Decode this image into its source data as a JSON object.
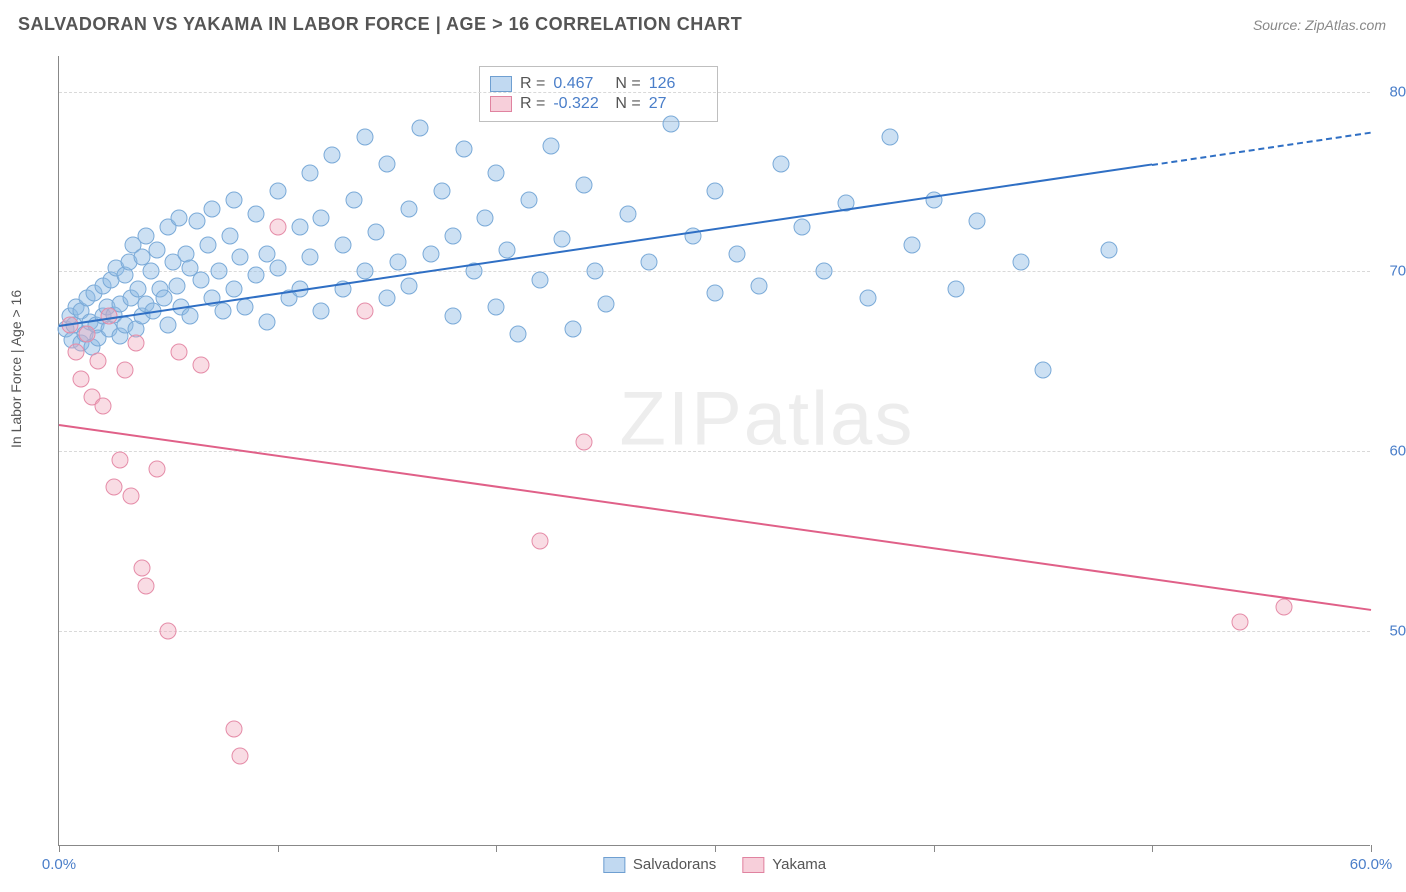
{
  "header": {
    "title": "SALVADORAN VS YAKAMA IN LABOR FORCE | AGE > 16 CORRELATION CHART",
    "source": "Source: ZipAtlas.com"
  },
  "watermark": {
    "zip": "ZIP",
    "atlas": "atlas"
  },
  "chart": {
    "type": "scatter",
    "background_color": "#ffffff",
    "grid_color": "#d9d9d9",
    "axis_color": "#888888",
    "label_color": "#555555",
    "tick_label_color": "#4a7ec9",
    "ylabel": "In Labor Force | Age > 16",
    "xlim": [
      0,
      60
    ],
    "ylim": [
      38,
      82
    ],
    "xtick_positions": [
      0,
      10,
      20,
      30,
      40,
      50,
      60
    ],
    "xtick_labels": {
      "0": "0.0%",
      "60": "60.0%"
    },
    "ytick_positions": [
      50,
      60,
      70,
      80
    ],
    "ytick_labels": {
      "50": "50.0%",
      "60": "60.0%",
      "70": "70.0%",
      "80": "80.0%"
    },
    "series": {
      "salvadorans": {
        "label": "Salvadorans",
        "color_fill": "rgba(142,186,229,0.45)",
        "color_stroke": "#7aaad8",
        "marker_size": 17,
        "r_value": "0.467",
        "n_value": "126",
        "trend": {
          "x1": 0,
          "y1": 67.0,
          "x2": 50,
          "y2": 76.0,
          "extrap_x2": 60,
          "extrap_y2": 77.8,
          "color": "#2f6fc4"
        },
        "points": [
          [
            0.3,
            66.8
          ],
          [
            0.5,
            67.5
          ],
          [
            0.6,
            66.2
          ],
          [
            0.7,
            67.0
          ],
          [
            0.8,
            68.0
          ],
          [
            1.0,
            66.0
          ],
          [
            1.0,
            67.8
          ],
          [
            1.2,
            66.5
          ],
          [
            1.3,
            68.5
          ],
          [
            1.4,
            67.2
          ],
          [
            1.5,
            65.8
          ],
          [
            1.6,
            68.8
          ],
          [
            1.7,
            67.0
          ],
          [
            1.8,
            66.3
          ],
          [
            2.0,
            69.2
          ],
          [
            2.0,
            67.5
          ],
          [
            2.2,
            68.0
          ],
          [
            2.3,
            66.8
          ],
          [
            2.4,
            69.5
          ],
          [
            2.5,
            67.6
          ],
          [
            2.6,
            70.2
          ],
          [
            2.8,
            68.2
          ],
          [
            2.8,
            66.4
          ],
          [
            3.0,
            69.8
          ],
          [
            3.0,
            67.0
          ],
          [
            3.2,
            70.5
          ],
          [
            3.3,
            68.5
          ],
          [
            3.4,
            71.5
          ],
          [
            3.5,
            66.8
          ],
          [
            3.6,
            69.0
          ],
          [
            3.8,
            70.8
          ],
          [
            3.8,
            67.5
          ],
          [
            4.0,
            72.0
          ],
          [
            4.0,
            68.2
          ],
          [
            4.2,
            70.0
          ],
          [
            4.3,
            67.8
          ],
          [
            4.5,
            71.2
          ],
          [
            4.6,
            69.0
          ],
          [
            4.8,
            68.5
          ],
          [
            5.0,
            72.5
          ],
          [
            5.0,
            67.0
          ],
          [
            5.2,
            70.5
          ],
          [
            5.4,
            69.2
          ],
          [
            5.5,
            73.0
          ],
          [
            5.6,
            68.0
          ],
          [
            5.8,
            71.0
          ],
          [
            6.0,
            70.2
          ],
          [
            6.0,
            67.5
          ],
          [
            6.3,
            72.8
          ],
          [
            6.5,
            69.5
          ],
          [
            6.8,
            71.5
          ],
          [
            7.0,
            68.5
          ],
          [
            7.0,
            73.5
          ],
          [
            7.3,
            70.0
          ],
          [
            7.5,
            67.8
          ],
          [
            7.8,
            72.0
          ],
          [
            8.0,
            69.0
          ],
          [
            8.0,
            74.0
          ],
          [
            8.3,
            70.8
          ],
          [
            8.5,
            68.0
          ],
          [
            9.0,
            73.2
          ],
          [
            9.0,
            69.8
          ],
          [
            9.5,
            71.0
          ],
          [
            9.5,
            67.2
          ],
          [
            10.0,
            74.5
          ],
          [
            10.0,
            70.2
          ],
          [
            10.5,
            68.5
          ],
          [
            11.0,
            72.5
          ],
          [
            11.0,
            69.0
          ],
          [
            11.5,
            75.5
          ],
          [
            11.5,
            70.8
          ],
          [
            12.0,
            73.0
          ],
          [
            12.0,
            67.8
          ],
          [
            12.5,
            76.5
          ],
          [
            13.0,
            71.5
          ],
          [
            13.0,
            69.0
          ],
          [
            13.5,
            74.0
          ],
          [
            14.0,
            70.0
          ],
          [
            14.0,
            77.5
          ],
          [
            14.5,
            72.2
          ],
          [
            15.0,
            68.5
          ],
          [
            15.0,
            76.0
          ],
          [
            15.5,
            70.5
          ],
          [
            16.0,
            73.5
          ],
          [
            16.0,
            69.2
          ],
          [
            16.5,
            78.0
          ],
          [
            17.0,
            71.0
          ],
          [
            17.5,
            74.5
          ],
          [
            18.0,
            67.5
          ],
          [
            18.0,
            72.0
          ],
          [
            18.5,
            76.8
          ],
          [
            19.0,
            70.0
          ],
          [
            19.5,
            73.0
          ],
          [
            20.0,
            68.0
          ],
          [
            20.0,
            75.5
          ],
          [
            20.5,
            71.2
          ],
          [
            21.0,
            66.5
          ],
          [
            21.5,
            74.0
          ],
          [
            22.0,
            69.5
          ],
          [
            22.5,
            77.0
          ],
          [
            23.0,
            71.8
          ],
          [
            23.5,
            66.8
          ],
          [
            24.0,
            74.8
          ],
          [
            24.5,
            70.0
          ],
          [
            25.0,
            68.2
          ],
          [
            26.0,
            73.2
          ],
          [
            27.0,
            70.5
          ],
          [
            28.0,
            78.2
          ],
          [
            29.0,
            72.0
          ],
          [
            30.0,
            68.8
          ],
          [
            30.0,
            74.5
          ],
          [
            31.0,
            71.0
          ],
          [
            32.0,
            69.2
          ],
          [
            33.0,
            76.0
          ],
          [
            34.0,
            72.5
          ],
          [
            35.0,
            70.0
          ],
          [
            36.0,
            73.8
          ],
          [
            37.0,
            68.5
          ],
          [
            38.0,
            77.5
          ],
          [
            39.0,
            71.5
          ],
          [
            40.0,
            74.0
          ],
          [
            41.0,
            69.0
          ],
          [
            42.0,
            72.8
          ],
          [
            44.0,
            70.5
          ],
          [
            45.0,
            64.5
          ],
          [
            48.0,
            71.2
          ]
        ]
      },
      "yakama": {
        "label": "Yakama",
        "color_fill": "rgba(240,168,188,0.40)",
        "color_stroke": "#e58ca8",
        "marker_size": 17,
        "r_value": "-0.322",
        "n_value": "27",
        "trend": {
          "x1": 0,
          "y1": 61.5,
          "x2": 60,
          "y2": 51.2,
          "color": "#e06088"
        },
        "points": [
          [
            0.5,
            67.0
          ],
          [
            0.8,
            65.5
          ],
          [
            1.0,
            64.0
          ],
          [
            1.3,
            66.5
          ],
          [
            1.5,
            63.0
          ],
          [
            1.8,
            65.0
          ],
          [
            2.0,
            62.5
          ],
          [
            2.3,
            67.5
          ],
          [
            2.5,
            58.0
          ],
          [
            2.8,
            59.5
          ],
          [
            3.0,
            64.5
          ],
          [
            3.3,
            57.5
          ],
          [
            3.5,
            66.0
          ],
          [
            3.8,
            53.5
          ],
          [
            4.0,
            52.5
          ],
          [
            4.5,
            59.0
          ],
          [
            5.0,
            50.0
          ],
          [
            5.5,
            65.5
          ],
          [
            6.5,
            64.8
          ],
          [
            8.0,
            44.5
          ],
          [
            8.3,
            43.0
          ],
          [
            10.0,
            72.5
          ],
          [
            14.0,
            67.8
          ],
          [
            22.0,
            55.0
          ],
          [
            24.0,
            60.5
          ],
          [
            54.0,
            50.5
          ],
          [
            56.0,
            51.3
          ]
        ]
      }
    },
    "legend_stats": {
      "r_label": "R =",
      "n_label": "N ="
    }
  }
}
